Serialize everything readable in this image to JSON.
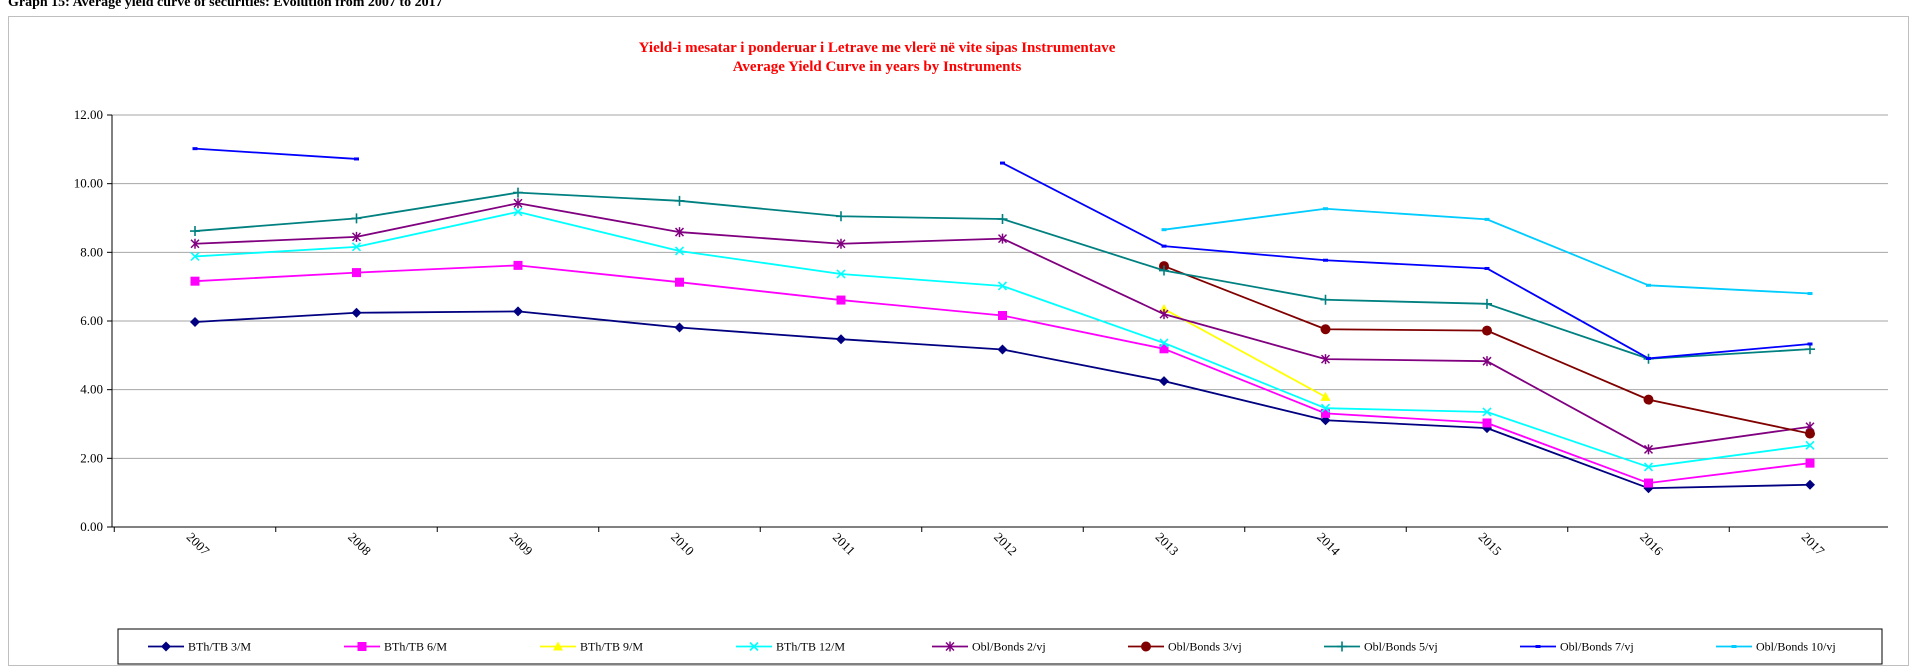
{
  "page_heading": "Graph 15: Average yield curve of securities: Evolution from 2007 to 2017",
  "chart_data": {
    "type": "line",
    "title": "Yield-i  mesatar i ponderuar i Letrave me vlerë në vite sipas Instrumentave",
    "subtitle": "Average Yield Curve in years by Instruments",
    "xlabel": "",
    "ylabel": "",
    "x": [
      "2007",
      "2008",
      "2009",
      "2010",
      "2011",
      "2012",
      "2013",
      "2014",
      "2015",
      "2016",
      "2017"
    ],
    "ylim": [
      0,
      12
    ],
    "y_ticks": [
      "0.00",
      "2.00",
      "4.00",
      "6.00",
      "8.00",
      "10.00",
      "12.00"
    ],
    "grid": "horizontal",
    "legend_position": "bottom",
    "series": [
      {
        "name": "BTh/TB 3/M",
        "color": "#000080",
        "marker": "diamond",
        "values": [
          5.97,
          6.24,
          6.28,
          5.81,
          5.47,
          5.17,
          4.25,
          3.11,
          2.88,
          1.13,
          1.23
        ]
      },
      {
        "name": "BTh/TB 6/M",
        "color": "#ff00ff",
        "marker": "square",
        "values": [
          7.16,
          7.41,
          7.62,
          7.13,
          6.61,
          6.16,
          5.19,
          3.31,
          3.03,
          1.28,
          1.86
        ]
      },
      {
        "name": "BTh/TB 9/M",
        "color": "#ffff00",
        "marker": "triangle",
        "values": [
          null,
          null,
          null,
          null,
          null,
          null,
          6.35,
          3.79,
          null,
          null,
          null
        ]
      },
      {
        "name": "BTh/TB 12/M",
        "color": "#00ffff",
        "marker": "x",
        "values": [
          7.88,
          8.16,
          9.18,
          8.04,
          7.37,
          7.02,
          5.36,
          3.46,
          3.35,
          1.75,
          2.38
        ]
      },
      {
        "name": "Obl/Bonds 2/vj",
        "color": "#800080",
        "marker": "star",
        "values": [
          8.25,
          8.45,
          9.43,
          8.59,
          8.25,
          8.4,
          6.2,
          4.89,
          4.83,
          2.26,
          2.92
        ]
      },
      {
        "name": "Obl/Bonds 3/vj",
        "color": "#800000",
        "marker": "circle",
        "values": [
          null,
          null,
          null,
          null,
          null,
          null,
          7.6,
          5.76,
          5.72,
          3.71,
          2.72
        ]
      },
      {
        "name": "Obl/Bonds 5/vj",
        "color": "#008080",
        "marker": "plus",
        "values": [
          8.62,
          8.99,
          9.74,
          9.5,
          9.05,
          8.97,
          7.47,
          6.62,
          6.5,
          4.9,
          5.18
        ]
      },
      {
        "name": "Obl/Bonds 7/vj",
        "color": "#0000ff",
        "marker": "dash",
        "values": [
          11.02,
          10.72,
          null,
          null,
          null,
          10.6,
          8.18,
          7.77,
          7.53,
          4.91,
          5.33
        ]
      },
      {
        "name": "Obl/Bonds 10/vj",
        "color": "#00ccff",
        "marker": "dash",
        "values": [
          null,
          null,
          null,
          null,
          null,
          null,
          8.66,
          9.27,
          8.96,
          7.04,
          6.8
        ]
      }
    ]
  }
}
